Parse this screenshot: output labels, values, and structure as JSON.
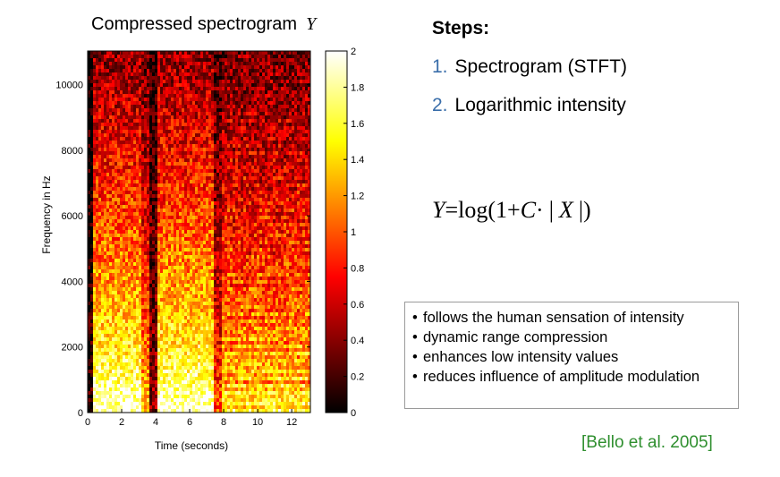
{
  "chart_data": {
    "type": "heatmap",
    "title": "Compressed spectrogram",
    "title_symbol": "Y",
    "xlabel": "Time (seconds)",
    "ylabel": "Frequency in Hz",
    "xlim": [
      0,
      13.1
    ],
    "ylim": [
      0,
      11025
    ],
    "xticks": [
      0,
      2,
      4,
      6,
      8,
      10,
      12
    ],
    "yticks": [
      0,
      2000,
      4000,
      6000,
      8000,
      10000
    ],
    "colorbar": {
      "min": 0,
      "max": 2,
      "colormap": "hot",
      "ticks": [
        "0",
        "0.2",
        "0.4",
        "0.6",
        "0.8",
        "1",
        "1.2",
        "1.4",
        "1.6",
        "1.8",
        "2"
      ]
    },
    "grid": false
  },
  "steps": {
    "heading": "Steps:",
    "items": [
      {
        "num": "1.",
        "text": "Spectrogram (STFT)"
      },
      {
        "num": "2.",
        "text": "Logarithmic intensity"
      }
    ]
  },
  "formula": {
    "lhs": "Y",
    "eq": "=",
    "log": "log(1+",
    "c": "C",
    "dot": "·",
    "bar1": "|",
    "x": "X",
    "bar2": "|)"
  },
  "notes": [
    "follows the human sensation of intensity",
    "dynamic range compression",
    "enhances low intensity values",
    "reduces influence of amplitude modulation"
  ],
  "citation": "[Bello et al. 2005]",
  "colors": {
    "step_number": "#3a6eaa",
    "citation": "#2f8f2f"
  }
}
